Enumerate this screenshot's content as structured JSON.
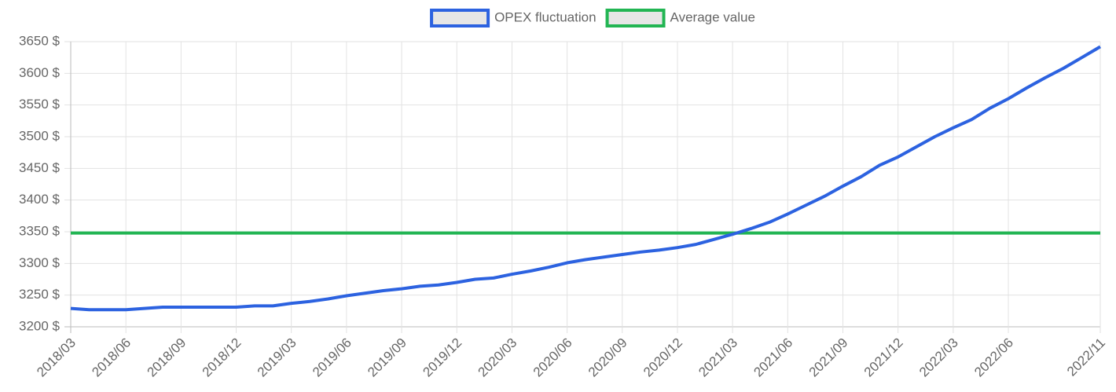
{
  "chart_data": {
    "type": "line",
    "categories": [
      "2018/03",
      null,
      null,
      "2018/06",
      null,
      null,
      "2018/09",
      null,
      null,
      "2018/12",
      null,
      null,
      "2019/03",
      null,
      null,
      "2019/06",
      null,
      null,
      "2019/09",
      null,
      null,
      "2019/12",
      null,
      null,
      "2020/03",
      null,
      null,
      "2020/06",
      null,
      null,
      "2020/09",
      null,
      null,
      "2020/12",
      null,
      null,
      "2021/03",
      null,
      null,
      "2021/06",
      null,
      null,
      "2021/09",
      null,
      null,
      "2021/12",
      null,
      null,
      "2022/03",
      null,
      null,
      "2022/06",
      null,
      null,
      null,
      null,
      "2022/11"
    ],
    "series": [
      {
        "name": "OPEX fluctuation",
        "color": "#2c62e0",
        "values": [
          3229,
          3227,
          3227,
          3227,
          3229,
          3231,
          3231,
          3231,
          3231,
          3231,
          3233,
          3233,
          3237,
          3240,
          3244,
          3249,
          3253,
          3257,
          3260,
          3264,
          3266,
          3270,
          3275,
          3277,
          3283,
          3288,
          3294,
          3301,
          3306,
          3310,
          3314,
          3318,
          3321,
          3325,
          3330,
          3338,
          3346,
          3355,
          3365,
          3378,
          3392,
          3406,
          3422,
          3437,
          3455,
          3468,
          3484,
          3500,
          3514,
          3527,
          3545,
          3560,
          3577,
          3593,
          3608,
          3625,
          3642
        ]
      },
      {
        "name": "Average value",
        "color": "#22b553",
        "values": [
          3348,
          3348,
          3348,
          3348,
          3348,
          3348,
          3348,
          3348,
          3348,
          3348,
          3348,
          3348,
          3348,
          3348,
          3348,
          3348,
          3348,
          3348,
          3348,
          3348,
          3348,
          3348,
          3348,
          3348,
          3348,
          3348,
          3348,
          3348,
          3348,
          3348,
          3348,
          3348,
          3348,
          3348,
          3348,
          3348,
          3348,
          3348,
          3348,
          3348,
          3348,
          3348,
          3348,
          3348,
          3348,
          3348,
          3348,
          3348,
          3348,
          3348,
          3348,
          3348,
          3348,
          3348,
          3348,
          3348,
          3348
        ]
      }
    ],
    "ylim": [
      3200,
      3650
    ],
    "yticks": [
      {
        "value": 3200,
        "label": "3200 $"
      },
      {
        "value": 3250,
        "label": "3250 $"
      },
      {
        "value": 3300,
        "label": "3300 $"
      },
      {
        "value": 3350,
        "label": "3350 $"
      },
      {
        "value": 3400,
        "label": "3400 $"
      },
      {
        "value": 3450,
        "label": "3450 $"
      },
      {
        "value": 3500,
        "label": "3500 $"
      },
      {
        "value": 3550,
        "label": "3550 $"
      },
      {
        "value": 3600,
        "label": "3600 $"
      },
      {
        "value": 3650,
        "label": "3650 $"
      }
    ],
    "grid": true,
    "legend": "top"
  }
}
